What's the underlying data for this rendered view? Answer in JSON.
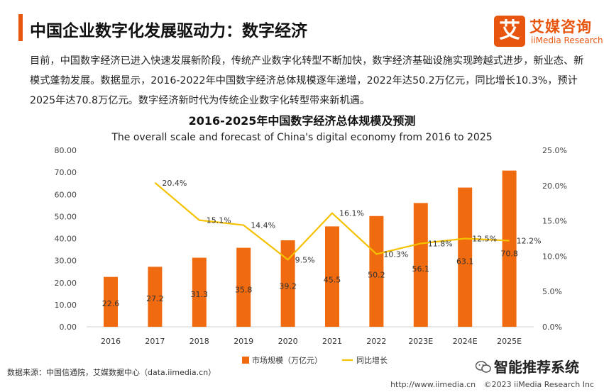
{
  "header": {
    "title": "中国企业数字化发展驱动力：数字经济",
    "accent_color": "#E8550F"
  },
  "logo": {
    "glyph": "艾",
    "cn": "艾媒咨询",
    "en": "iiMedia Research"
  },
  "intro": "目前，中国数字经济已进入快速发展新阶段，传统产业数字化转型不断加快，数字经济基础设施实现跨越式进步，新业态、新模式蓬勃发展。数据显示，2016-2022年中国数字经济总体规模逐年递增，2022年达50.2万亿元，同比增长10.3%，预计2025年达70.8万亿元。数字经济新时代为传统企业数字化转型带来新机遇。",
  "chart_data": {
    "type": "bar+line",
    "title": "2016-2025年中国数字经济总体规模及预测",
    "subtitle": "The overall scale and forecast of China's digital economy from 2016 to 2025",
    "categories": [
      "2016",
      "2017",
      "2018",
      "2019",
      "2020",
      "2021",
      "2022",
      "2023E",
      "2024E",
      "2025E"
    ],
    "series": [
      {
        "name": "市场规模（万亿元）",
        "type": "bar",
        "axis": "left",
        "color": "#F06A0F",
        "values": [
          22.6,
          27.2,
          31.3,
          35.8,
          39.2,
          45.5,
          50.2,
          56.1,
          63.1,
          70.8
        ],
        "labels": [
          "22.6",
          "27.2",
          "31.3",
          "35.8",
          "39.2",
          "45.5",
          "50.2",
          "56.1",
          "63.1",
          "70.8"
        ]
      },
      {
        "name": "同比增长",
        "type": "line",
        "axis": "right",
        "color": "#F5C100",
        "values": [
          null,
          20.4,
          15.1,
          14.4,
          9.5,
          16.1,
          10.3,
          11.8,
          12.5,
          12.2
        ],
        "labels": [
          "",
          "20.4%",
          "15.1%",
          "14.4%",
          "9.5%",
          "16.1%",
          "10.3%",
          "11.8%",
          "12.5%",
          "12.2%"
        ]
      }
    ],
    "y_left": {
      "min": 0,
      "max": 80,
      "step": 10,
      "tick_labels": [
        "0.00",
        "10.00",
        "20.00",
        "30.00",
        "40.00",
        "50.00",
        "60.00",
        "70.00",
        "80.00"
      ]
    },
    "y_right": {
      "min": 0,
      "max": 25,
      "step": 5,
      "tick_labels": [
        "0.0%",
        "5.0%",
        "10.0%",
        "15.0%",
        "20.0%",
        "25.0%"
      ]
    },
    "legend_position": "bottom-center",
    "grid": false
  },
  "footer": {
    "source": "数据来源：中国信通院，艾媒数据中心（data.iimedia.cn）",
    "wechat_account": "智能推荐系统",
    "url": "http://www.iimedia.cn",
    "copyright": "©2023  iiMedia Research  Inc"
  }
}
